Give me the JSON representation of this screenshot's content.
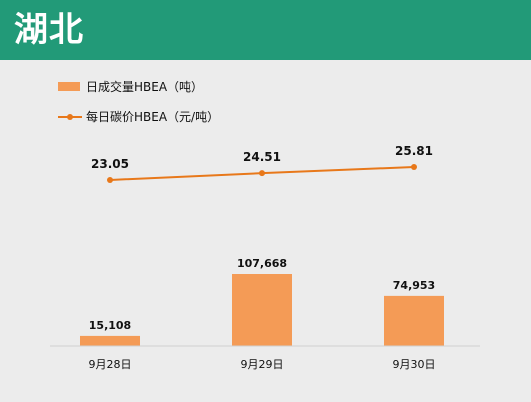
{
  "header": {
    "title": "湖北"
  },
  "legend": {
    "bar_label": "日成交量HBEA（吨）",
    "line_label": "每日碳价HBEA（元/吨）"
  },
  "colors": {
    "header": "#229a78",
    "bar": "#f49b56",
    "line": "#e8781a"
  },
  "chart_data": {
    "type": "bar",
    "categories": [
      "9月28日",
      "9月29日",
      "9月30日"
    ],
    "series": [
      {
        "name": "日成交量HBEA（吨）",
        "type": "bar",
        "values": [
          15108,
          107668,
          74953
        ],
        "labels": [
          "15,108",
          "107,668",
          "74,953"
        ]
      },
      {
        "name": "每日碳价HBEA（元/吨）",
        "type": "line",
        "values": [
          23.05,
          24.51,
          25.81
        ],
        "labels": [
          "23.05",
          "24.51",
          "25.81"
        ]
      }
    ],
    "grid": false,
    "legend_position": "top-left"
  }
}
